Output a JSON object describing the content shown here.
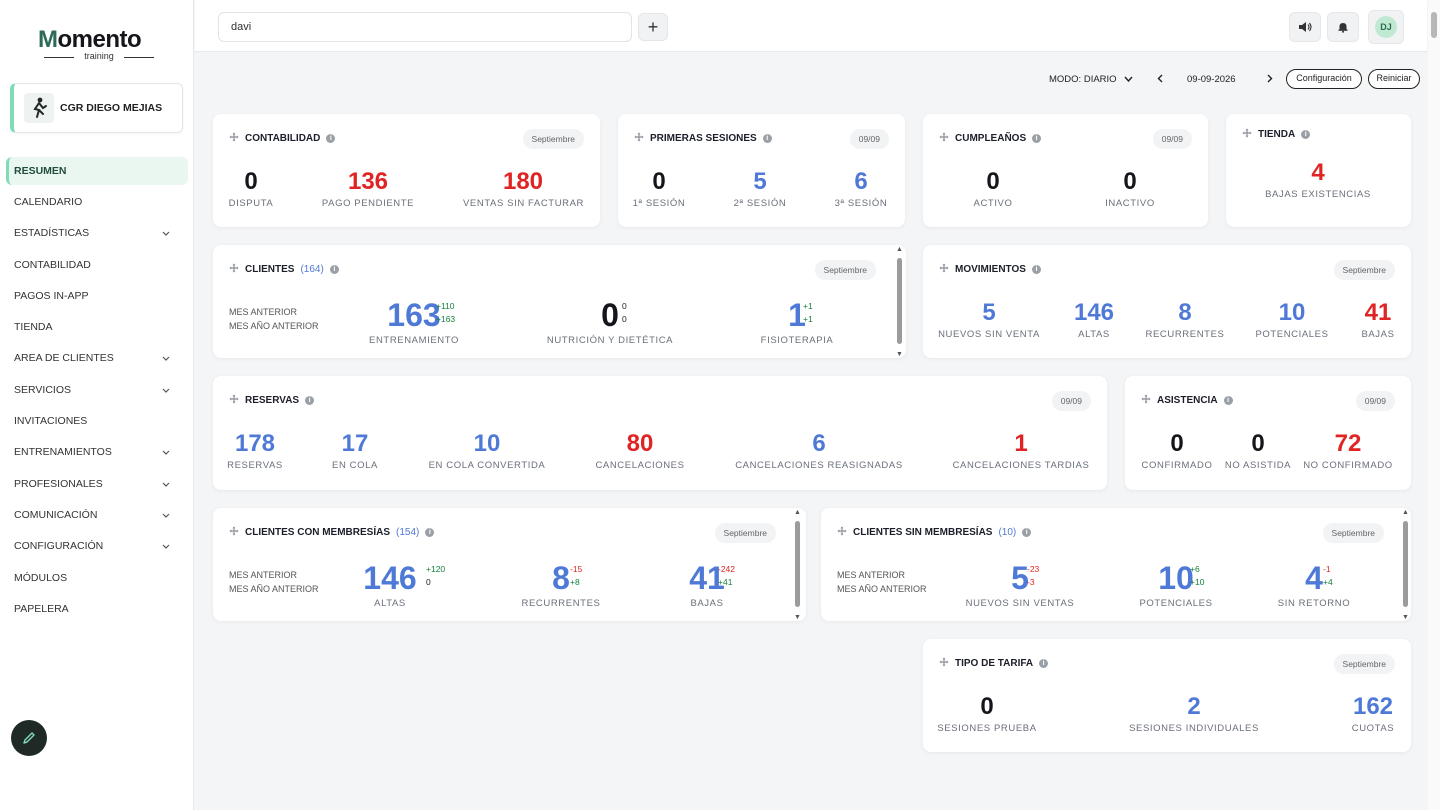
{
  "brand": {
    "name_m": "M",
    "name_rest": "omento",
    "sub": "training"
  },
  "center": {
    "name": "CGR DIEGO MEJIAS"
  },
  "nav": [
    {
      "label": "RESUMEN",
      "active": true,
      "chevron": false
    },
    {
      "label": "CALENDARIO",
      "chevron": false
    },
    {
      "label": "ESTADÍSTICAS",
      "chevron": true
    },
    {
      "label": "CONTABILIDAD",
      "chevron": false
    },
    {
      "label": "PAGOS IN-APP",
      "chevron": false
    },
    {
      "label": "TIENDA",
      "chevron": false
    },
    {
      "label": "AREA DE CLIENTES",
      "chevron": true
    },
    {
      "label": "SERVICIOS",
      "chevron": true
    },
    {
      "label": "INVITACIONES",
      "chevron": false
    },
    {
      "label": "ENTRENAMIENTOS",
      "chevron": true
    },
    {
      "label": "PROFESIONALES",
      "chevron": true
    },
    {
      "label": "COMUNICACIÓN",
      "chevron": true
    },
    {
      "label": "CONFIGURACIÓN",
      "chevron": true
    },
    {
      "label": "MÓDULOS",
      "chevron": false
    },
    {
      "label": "PAPELERA",
      "chevron": false
    }
  ],
  "topbar": {
    "search_value": "davi",
    "add_label": "+",
    "avatar_initials": "DJ",
    "icons": [
      "speaker-icon",
      "bell-icon"
    ]
  },
  "controls": {
    "mode": "MODO: DIARIO",
    "date": "09-09-2026",
    "config": "Configuración",
    "reset": "Reiniciar"
  },
  "contabilidad": {
    "title": "CONTABILIDAD",
    "pill": "Septiembre",
    "stats": [
      {
        "v": "0",
        "l": "DISPUTA"
      },
      {
        "v": "136",
        "l": "PAGO PENDIENTE"
      },
      {
        "v": "180",
        "l": "VENTAS SIN FACTURAR"
      }
    ]
  },
  "primeras": {
    "title": "PRIMERAS SESIONES",
    "pill": "09/09",
    "stats": [
      {
        "v": "0",
        "l": "1ª SESIÓN"
      },
      {
        "v": "5",
        "l": "2ª SESIÓN"
      },
      {
        "v": "6",
        "l": "3ª SESIÓN"
      }
    ]
  },
  "cumple": {
    "title": "CUMPLEAÑOS",
    "pill": "09/09",
    "stats": [
      {
        "v": "0",
        "l": "ACTIVO"
      },
      {
        "v": "0",
        "l": "INACTIVO"
      }
    ]
  },
  "tienda": {
    "title": "TIENDA",
    "stats": [
      {
        "v": "4",
        "l": "BAJAS EXISTENCIAS"
      }
    ]
  },
  "clientes": {
    "title": "CLIENTES",
    "count": "(164)",
    "pill": "Septiembre",
    "prev1": "MES ANTERIOR",
    "prev2": "MES AÑO ANTERIOR",
    "stats": [
      {
        "v": "163",
        "l": "ENTRENAMIENTO",
        "d1": "+110",
        "d2": "+163"
      },
      {
        "v": "0",
        "l": "NUTRICIÓN Y DIETÉTICA",
        "d1": "0",
        "d2": "0"
      },
      {
        "v": "1",
        "l": "FISIOTERAPIA",
        "d1": "+1",
        "d2": "+1"
      }
    ]
  },
  "movimientos": {
    "title": "MOVIMIENTOS",
    "pill": "Septiembre",
    "stats": [
      {
        "v": "5",
        "l": "NUEVOS SIN VENTA"
      },
      {
        "v": "146",
        "l": "ALTAS"
      },
      {
        "v": "8",
        "l": "RECURRENTES"
      },
      {
        "v": "10",
        "l": "POTENCIALES"
      },
      {
        "v": "41",
        "l": "BAJAS"
      }
    ]
  },
  "reservas": {
    "title": "RESERVAS",
    "pill": "09/09",
    "stats": [
      {
        "v": "178",
        "l": "RESERVAS"
      },
      {
        "v": "17",
        "l": "EN COLA"
      },
      {
        "v": "10",
        "l": "EN COLA CONVERTIDA"
      },
      {
        "v": "80",
        "l": "CANCELACIONES"
      },
      {
        "v": "6",
        "l": "CANCELACIONES REASIGNADAS"
      },
      {
        "v": "1",
        "l": "CANCELACIONES TARDIAS"
      }
    ]
  },
  "asistencia": {
    "title": "ASISTENCIA",
    "pill": "09/09",
    "stats": [
      {
        "v": "0",
        "l": "CONFIRMADO"
      },
      {
        "v": "0",
        "l": "NO ASISTIDA"
      },
      {
        "v": "72",
        "l": "NO CONFIRMADO"
      }
    ]
  },
  "conmem": {
    "title": "CLIENTES CON MEMBRESÍAS",
    "count": "(154)",
    "pill": "Septiembre",
    "prev1": "MES ANTERIOR",
    "prev2": "MES AÑO ANTERIOR",
    "stats": [
      {
        "v": "146",
        "l": "ALTAS",
        "d1": "+120",
        "d2": "0"
      },
      {
        "v": "8",
        "l": "RECURRENTES",
        "d1": "-15",
        "d2": "+8"
      },
      {
        "v": "41",
        "l": "BAJAS",
        "d1": "-242",
        "d2": "+41"
      }
    ]
  },
  "sinmem": {
    "title": "CLIENTES SIN MEMBRESÍAS",
    "count": "(10)",
    "pill": "Septiembre",
    "prev1": "MES ANTERIOR",
    "prev2": "MES AÑO ANTERIOR",
    "stats": [
      {
        "v": "5",
        "l": "NUEVOS SIN VENTAS",
        "d1": "-23",
        "d2": "-3"
      },
      {
        "v": "10",
        "l": "POTENCIALES",
        "d1": "+6",
        "d2": "+10"
      },
      {
        "v": "4",
        "l": "SIN RETORNO",
        "d1": "-1",
        "d2": "+4"
      }
    ]
  },
  "tarifa": {
    "title": "TIPO DE TARIFA",
    "pill": "Septiembre",
    "stats": [
      {
        "v": "0",
        "l": "SESIONES PRUEBA"
      },
      {
        "v": "2",
        "l": "SESIONES INDIVIDUALES"
      },
      {
        "v": "162",
        "l": "CUOTAS"
      }
    ]
  },
  "colors": {
    "accent": "#7fdcb6",
    "blue": "#4f79d6",
    "red": "#e02424",
    "green": "#16803c"
  }
}
